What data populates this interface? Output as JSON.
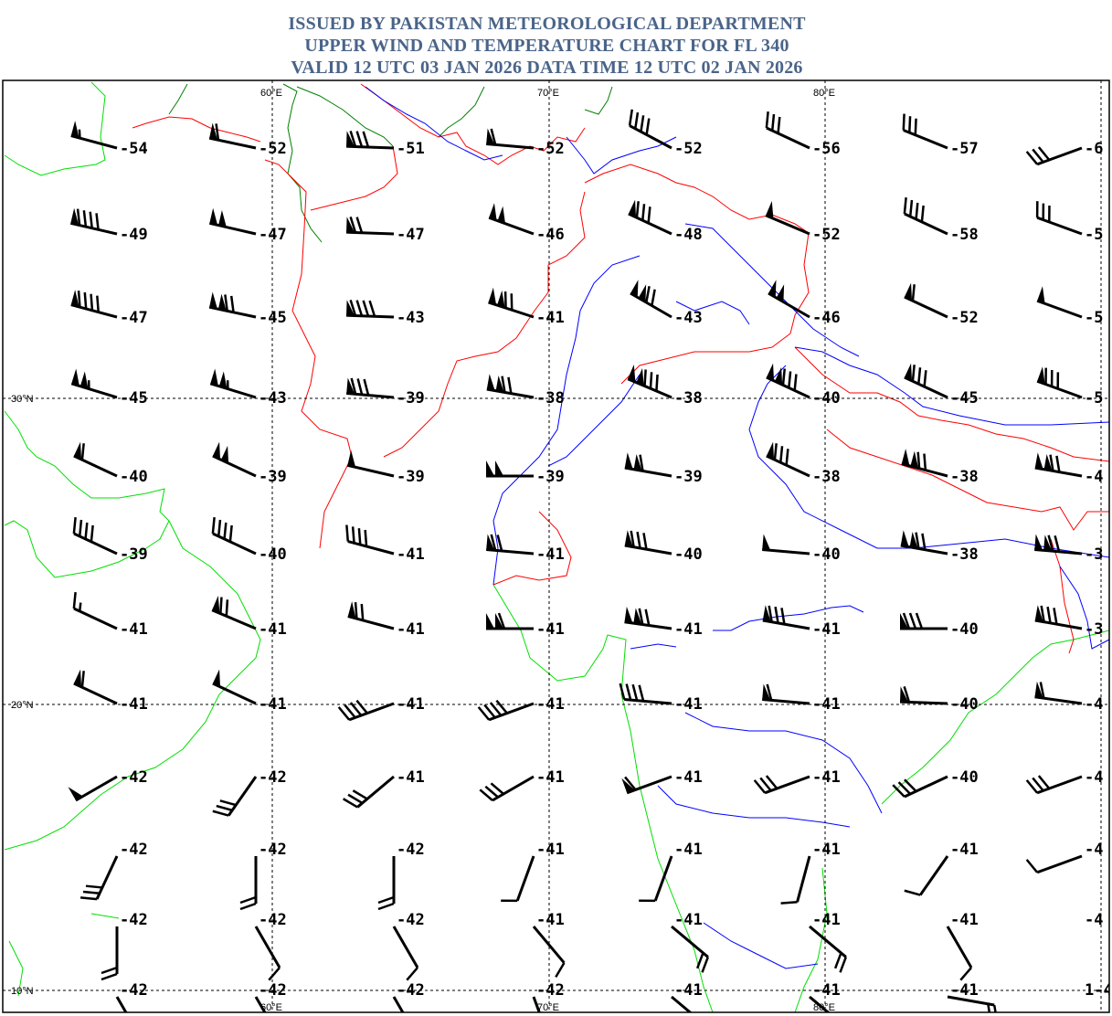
{
  "header": {
    "line1": "ISSUED BY PAKISTAN METEOROLOGICAL DEPARTMENT",
    "line2": "UPPER WIND AND TEMPERATURE CHART FOR FL 340",
    "line3": "VALID 12 UTC 03 JAN 2026 DATA TIME 12 UTC 02 JAN 2026"
  },
  "grid": {
    "lon_labels": [
      "60°E",
      "70°E",
      "80°E"
    ],
    "lat_labels": [
      "30°N",
      "20°N",
      "10°N"
    ]
  },
  "colors": {
    "title": "#4a6489",
    "coast": "#00e000",
    "border": "#ff0000",
    "river": "#0000ff",
    "border_dark": "#008000"
  },
  "stations": [
    [
      {
        "t": "-54",
        "spd": 55,
        "dir": 285
      },
      {
        "t": "-52",
        "spd": 60,
        "dir": 282
      },
      {
        "t": "-51",
        "spd": 80,
        "dir": 272
      },
      {
        "t": "-52",
        "spd": 60,
        "dir": 275
      },
      {
        "t": "-52",
        "spd": 40,
        "dir": 298
      },
      {
        "t": "-56",
        "spd": 30,
        "dir": 295
      },
      {
        "t": "-57",
        "spd": 30,
        "dir": 292
      },
      {
        "t": "-6",
        "spd": 30,
        "dir": 250
      }
    ],
    [
      {
        "t": "-49",
        "spd": 90,
        "dir": 283
      },
      {
        "t": "-47",
        "spd": 100,
        "dir": 283
      },
      {
        "t": "-47",
        "spd": 70,
        "dir": 272
      },
      {
        "t": "-46",
        "spd": 100,
        "dir": 290
      },
      {
        "t": "-48",
        "spd": 80,
        "dir": 295
      },
      {
        "t": "-52",
        "spd": 50,
        "dir": 293
      },
      {
        "t": "-58",
        "spd": 40,
        "dir": 295
      },
      {
        "t": "-5",
        "spd": 30,
        "dir": 290
      }
    ],
    [
      {
        "t": "-47",
        "spd": 90,
        "dir": 285
      },
      {
        "t": "-45",
        "spd": 120,
        "dir": 282
      },
      {
        "t": "-43",
        "spd": 90,
        "dir": 272
      },
      {
        "t": "-41",
        "spd": 120,
        "dir": 288
      },
      {
        "t": "-43",
        "spd": 120,
        "dir": 300
      },
      {
        "t": "-46",
        "spd": 100,
        "dir": 300
      },
      {
        "t": "-52",
        "spd": 60,
        "dir": 295
      },
      {
        "t": "-5",
        "spd": 50,
        "dir": 290
      }
    ],
    [
      {
        "t": "-45",
        "spd": 105,
        "dir": 287
      },
      {
        "t": "-43",
        "spd": 105,
        "dir": 287
      },
      {
        "t": "-39",
        "spd": 80,
        "dir": 275
      },
      {
        "t": "-38",
        "spd": 120,
        "dir": 280
      },
      {
        "t": "-38",
        "spd": 130,
        "dir": 293
      },
      {
        "t": "-40",
        "spd": 130,
        "dir": 295
      },
      {
        "t": "-45",
        "spd": 80,
        "dir": 295
      },
      {
        "t": "-5",
        "spd": 80,
        "dir": 290
      }
    ],
    [
      {
        "t": "-40",
        "spd": 60,
        "dir": 295
      },
      {
        "t": "-39",
        "spd": 100,
        "dir": 295
      },
      {
        "t": "-39",
        "spd": 50,
        "dir": 283
      },
      {
        "t": "-39",
        "spd": 100,
        "dir": 270
      },
      {
        "t": "-39",
        "spd": 110,
        "dir": 280
      },
      {
        "t": "-38",
        "spd": 80,
        "dir": 295
      },
      {
        "t": "-38",
        "spd": 120,
        "dir": 285
      },
      {
        "t": "-4",
        "spd": 120,
        "dir": 280
      }
    ],
    [
      {
        "t": "-39",
        "spd": 40,
        "dir": 295
      },
      {
        "t": "-40",
        "spd": 40,
        "dir": 295
      },
      {
        "t": "-41",
        "spd": 40,
        "dir": 285
      },
      {
        "t": "-41",
        "spd": 70,
        "dir": 275
      },
      {
        "t": "-40",
        "spd": 80,
        "dir": 280
      },
      {
        "t": "-40",
        "spd": 50,
        "dir": 275
      },
      {
        "t": "-38",
        "spd": 120,
        "dir": 280
      },
      {
        "t": "-3",
        "spd": 120,
        "dir": 275
      }
    ],
    [
      {
        "t": "-41",
        "spd": 15,
        "dir": 295
      },
      {
        "t": "-41",
        "spd": 70,
        "dir": 293
      },
      {
        "t": "-41",
        "spd": 70,
        "dir": 285
      },
      {
        "t": "-41",
        "spd": 110,
        "dir": 270
      },
      {
        "t": "-41",
        "spd": 120,
        "dir": 278
      },
      {
        "t": "-41",
        "spd": 80,
        "dir": 280
      },
      {
        "t": "-40",
        "spd": 80,
        "dir": 270
      },
      {
        "t": "-3",
        "spd": 80,
        "dir": 280
      }
    ],
    [
      {
        "t": "-41",
        "spd": 60,
        "dir": 295
      },
      {
        "t": "-41",
        "spd": 50,
        "dir": 295
      },
      {
        "t": "-41",
        "spd": 40,
        "dir": 250
      },
      {
        "t": "-41",
        "spd": 40,
        "dir": 250
      },
      {
        "t": "-41",
        "spd": 40,
        "dir": 275
      },
      {
        "t": "-41",
        "spd": 60,
        "dir": 275
      },
      {
        "t": "-40",
        "spd": 60,
        "dir": 272
      },
      {
        "t": "-4",
        "spd": 60,
        "dir": 278
      }
    ],
    [
      {
        "t": "-42",
        "spd": 50,
        "dir": 240
      },
      {
        "t": "-42",
        "spd": 30,
        "dir": 215
      },
      {
        "t": "-41",
        "spd": 30,
        "dir": 230
      },
      {
        "t": "-41",
        "spd": 30,
        "dir": 240
      },
      {
        "t": "-41",
        "spd": 60,
        "dir": 250
      },
      {
        "t": "-41",
        "spd": 30,
        "dir": 250
      },
      {
        "t": "-40",
        "spd": 30,
        "dir": 245
      },
      {
        "t": "-4",
        "spd": 30,
        "dir": 250
      }
    ],
    [
      {
        "t": "-42",
        "spd": 30,
        "dir": 205
      },
      {
        "t": "-42",
        "spd": 20,
        "dir": 180
      },
      {
        "t": "-42",
        "spd": 20,
        "dir": 180
      },
      {
        "t": "-41",
        "spd": 10,
        "dir": 200
      },
      {
        "t": "-41",
        "spd": 10,
        "dir": 200
      },
      {
        "t": "-41",
        "spd": 10,
        "dir": 195
      },
      {
        "t": "-41",
        "spd": 10,
        "dir": 215
      },
      {
        "t": "-4",
        "spd": 10,
        "dir": 250
      }
    ],
    [
      {
        "t": "-42",
        "spd": 20,
        "dir": 180
      },
      {
        "t": "-42",
        "spd": 10,
        "dir": 150
      },
      {
        "t": "-42",
        "spd": 10,
        "dir": 150
      },
      {
        "t": "-41",
        "spd": 10,
        "dir": 140
      },
      {
        "t": "-41",
        "spd": 20,
        "dir": 130
      },
      {
        "t": "-41",
        "spd": 20,
        "dir": 130
      },
      {
        "t": "-41",
        "spd": 10,
        "dir": 150
      },
      {
        "t": "-4",
        "spd": 0,
        "dir": 0
      }
    ],
    [
      {
        "t": "-42",
        "spd": 20,
        "dir": 150
      },
      {
        "t": "-42",
        "spd": 20,
        "dir": 150
      },
      {
        "t": "-42",
        "spd": 20,
        "dir": 150
      },
      {
        "t": "-42",
        "spd": 20,
        "dir": 160
      },
      {
        "t": "-41",
        "spd": 20,
        "dir": 130
      },
      {
        "t": "-41",
        "spd": 20,
        "dir": 130
      },
      {
        "t": "-41",
        "spd": 20,
        "dir": 100
      },
      {
        "t": "1-4",
        "spd": 0,
        "dir": 0
      }
    ]
  ]
}
